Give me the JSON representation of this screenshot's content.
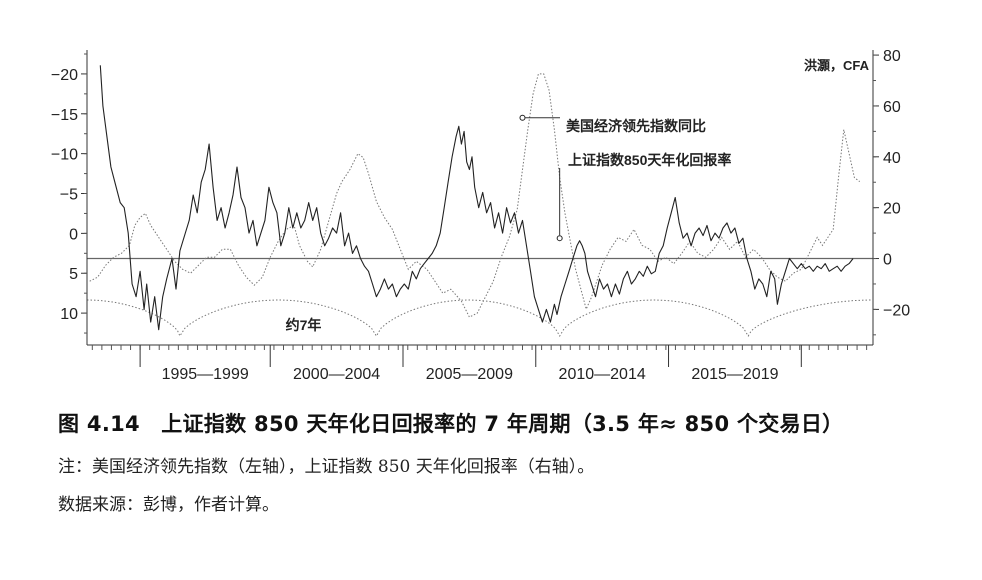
{
  "chart_data": {
    "type": "line",
    "credit": "洪灝，CFA",
    "left_axis": {
      "reversed": true,
      "ticks": [
        -20,
        -15,
        -10,
        -5,
        0,
        5,
        10
      ],
      "range": [
        -23,
        14
      ]
    },
    "right_axis": {
      "ticks": [
        80,
        60,
        40,
        20,
        0,
        -20
      ],
      "range": [
        -34,
        82
      ]
    },
    "x_range": [
      1992.6,
      2022.2
    ],
    "period_labels": [
      "1995—1999",
      "2000—2004",
      "2005—2009",
      "2010—2014",
      "2015—2019"
    ],
    "cycle_label": "约7年",
    "cycle_peaks": [
      1996.1,
      2003.5,
      2010.4,
      2017.5
    ],
    "annotations": [
      {
        "text": "美国经济领先指数同比",
        "series": "美国经济领先指数同比",
        "x": 2009.0,
        "y": -14.5
      },
      {
        "text": "上证指数850天年化回报率",
        "series": "上证指数850天年化回报率",
        "x": 2010.4,
        "y": 8
      }
    ],
    "zero_line": {
      "axis": "right",
      "value": 0
    },
    "series": [
      {
        "name": "美国经济领先指数同比",
        "axis": "left",
        "style": "dotted",
        "points": [
          [
            1992.7,
            6.0
          ],
          [
            1993.0,
            5.5
          ],
          [
            1993.3,
            4.0
          ],
          [
            1993.6,
            3.0
          ],
          [
            1993.9,
            2.5
          ],
          [
            1994.2,
            1.5
          ],
          [
            1994.4,
            -1.0
          ],
          [
            1994.6,
            -2.0
          ],
          [
            1994.8,
            -2.5
          ],
          [
            1995.0,
            -1.0
          ],
          [
            1995.3,
            0.5
          ],
          [
            1995.6,
            2.0
          ],
          [
            1995.9,
            3.5
          ],
          [
            1996.2,
            4.5
          ],
          [
            1996.5,
            5.0
          ],
          [
            1996.8,
            4.0
          ],
          [
            1997.1,
            3.0
          ],
          [
            1997.4,
            3.0
          ],
          [
            1997.7,
            2.0
          ],
          [
            1998.0,
            2.0
          ],
          [
            1998.3,
            4.0
          ],
          [
            1998.6,
            5.5
          ],
          [
            1998.9,
            6.5
          ],
          [
            1999.2,
            5.5
          ],
          [
            1999.5,
            3.0
          ],
          [
            1999.8,
            1.0
          ],
          [
            2000.1,
            -0.5
          ],
          [
            2000.4,
            -1.0
          ],
          [
            2000.6,
            1.5
          ],
          [
            2000.9,
            3.5
          ],
          [
            2001.1,
            4.2
          ],
          [
            2001.4,
            2.0
          ],
          [
            2001.7,
            -1.5
          ],
          [
            2002.0,
            -5.0
          ],
          [
            2002.2,
            -6.5
          ],
          [
            2002.5,
            -8.0
          ],
          [
            2002.8,
            -10.0
          ],
          [
            2003.0,
            -9.5
          ],
          [
            2003.2,
            -7.5
          ],
          [
            2003.5,
            -4.0
          ],
          [
            2003.8,
            -2.0
          ],
          [
            2004.1,
            -0.5
          ],
          [
            2004.4,
            2.0
          ],
          [
            2004.7,
            4.5
          ],
          [
            2005.0,
            3.5
          ],
          [
            2005.4,
            4.5
          ],
          [
            2005.7,
            6.0
          ],
          [
            2006.0,
            7.5
          ],
          [
            2006.3,
            7.0
          ],
          [
            2006.7,
            8.5
          ],
          [
            2007.0,
            10.5
          ],
          [
            2007.3,
            10.0
          ],
          [
            2007.6,
            8.0
          ],
          [
            2007.9,
            6.0
          ],
          [
            2008.2,
            3.0
          ],
          [
            2008.5,
            0.5
          ],
          [
            2008.8,
            -3.0
          ],
          [
            2009.0,
            -8.0
          ],
          [
            2009.2,
            -13.0
          ],
          [
            2009.4,
            -17.5
          ],
          [
            2009.6,
            -20.0
          ],
          [
            2009.8,
            -20.0
          ],
          [
            2010.0,
            -18.0
          ],
          [
            2010.2,
            -13.0
          ],
          [
            2010.4,
            -7.0
          ],
          [
            2010.6,
            -2.5
          ],
          [
            2010.8,
            1.0
          ],
          [
            2011.0,
            4.5
          ],
          [
            2011.2,
            7.0
          ],
          [
            2011.4,
            9.5
          ],
          [
            2011.6,
            8.0
          ],
          [
            2011.8,
            6.0
          ],
          [
            2012.0,
            4.0
          ],
          [
            2012.3,
            2.0
          ],
          [
            2012.6,
            0.5
          ],
          [
            2012.9,
            1.0
          ],
          [
            2013.2,
            -0.5
          ],
          [
            2013.5,
            1.5
          ],
          [
            2013.8,
            2.0
          ],
          [
            2014.1,
            3.5
          ],
          [
            2014.4,
            3.0
          ],
          [
            2014.7,
            3.8
          ],
          [
            2015.0,
            2.5
          ],
          [
            2015.3,
            1.0
          ],
          [
            2015.6,
            2.5
          ],
          [
            2015.9,
            3.0
          ],
          [
            2016.2,
            2.0
          ],
          [
            2016.5,
            0.5
          ],
          [
            2016.8,
            2.0
          ],
          [
            2017.1,
            1.0
          ],
          [
            2017.4,
            3.0
          ],
          [
            2017.7,
            2.0
          ],
          [
            2018.0,
            3.0
          ],
          [
            2018.3,
            4.5
          ],
          [
            2018.6,
            5.5
          ],
          [
            2018.9,
            6.0
          ],
          [
            2019.2,
            5.0
          ],
          [
            2019.5,
            4.5
          ],
          [
            2019.8,
            2.5
          ],
          [
            2020.1,
            0.5
          ],
          [
            2020.3,
            1.5
          ],
          [
            2020.5,
            0.5
          ],
          [
            2020.7,
            -0.5
          ],
          [
            2020.9,
            -7.0
          ],
          [
            2021.1,
            -13.0
          ],
          [
            2021.3,
            -10.0
          ],
          [
            2021.5,
            -7.0
          ],
          [
            2021.7,
            -6.5
          ]
        ]
      },
      {
        "name": "上证指数850天年化回报率",
        "axis": "right",
        "style": "solid",
        "points": [
          [
            1993.1,
            76
          ],
          [
            1993.2,
            60
          ],
          [
            1993.35,
            48
          ],
          [
            1993.5,
            36
          ],
          [
            1993.7,
            28
          ],
          [
            1993.85,
            22
          ],
          [
            1994.0,
            20
          ],
          [
            1994.15,
            10
          ],
          [
            1994.3,
            -10
          ],
          [
            1994.45,
            -15
          ],
          [
            1994.6,
            -5
          ],
          [
            1994.75,
            -20
          ],
          [
            1994.85,
            -10
          ],
          [
            1995.0,
            -25
          ],
          [
            1995.15,
            -15
          ],
          [
            1995.3,
            -28
          ],
          [
            1995.45,
            -15
          ],
          [
            1995.6,
            -8
          ],
          [
            1995.8,
            0
          ],
          [
            1995.95,
            -12
          ],
          [
            1996.1,
            3
          ],
          [
            1996.3,
            10
          ],
          [
            1996.45,
            15
          ],
          [
            1996.6,
            25
          ],
          [
            1996.75,
            18
          ],
          [
            1996.9,
            30
          ],
          [
            1997.05,
            35
          ],
          [
            1997.2,
            45
          ],
          [
            1997.35,
            28
          ],
          [
            1997.5,
            15
          ],
          [
            1997.65,
            20
          ],
          [
            1997.8,
            12
          ],
          [
            1997.95,
            18
          ],
          [
            1998.1,
            25
          ],
          [
            1998.25,
            36
          ],
          [
            1998.4,
            24
          ],
          [
            1998.55,
            20
          ],
          [
            1998.7,
            10
          ],
          [
            1998.85,
            15
          ],
          [
            1999.0,
            5
          ],
          [
            1999.15,
            10
          ],
          [
            1999.3,
            15
          ],
          [
            1999.45,
            28
          ],
          [
            1999.6,
            22
          ],
          [
            1999.75,
            18
          ],
          [
            1999.9,
            5
          ],
          [
            2000.05,
            10
          ],
          [
            2000.2,
            20
          ],
          [
            2000.35,
            12
          ],
          [
            2000.5,
            18
          ],
          [
            2000.65,
            12
          ],
          [
            2000.8,
            15
          ],
          [
            2000.95,
            22
          ],
          [
            2001.1,
            15
          ],
          [
            2001.25,
            20
          ],
          [
            2001.4,
            10
          ],
          [
            2001.55,
            5
          ],
          [
            2001.7,
            8
          ],
          [
            2001.85,
            12
          ],
          [
            2002.0,
            10
          ],
          [
            2002.15,
            18
          ],
          [
            2002.3,
            5
          ],
          [
            2002.45,
            10
          ],
          [
            2002.6,
            2
          ],
          [
            2002.75,
            5
          ],
          [
            2002.9,
            0
          ],
          [
            2003.05,
            -3
          ],
          [
            2003.2,
            -5
          ],
          [
            2003.35,
            -10
          ],
          [
            2003.5,
            -15
          ],
          [
            2003.65,
            -12
          ],
          [
            2003.8,
            -8
          ],
          [
            2003.95,
            -12
          ],
          [
            2004.1,
            -10
          ],
          [
            2004.25,
            -15
          ],
          [
            2004.4,
            -12
          ],
          [
            2004.55,
            -10
          ],
          [
            2004.7,
            -12
          ],
          [
            2004.85,
            -5
          ],
          [
            2005.0,
            -8
          ],
          [
            2005.15,
            -4
          ],
          [
            2005.3,
            -2
          ],
          [
            2005.45,
            0
          ],
          [
            2005.6,
            2
          ],
          [
            2005.75,
            5
          ],
          [
            2005.9,
            10
          ],
          [
            2006.05,
            20
          ],
          [
            2006.2,
            30
          ],
          [
            2006.35,
            40
          ],
          [
            2006.5,
            48
          ],
          [
            2006.6,
            52
          ],
          [
            2006.7,
            45
          ],
          [
            2006.8,
            50
          ],
          [
            2006.9,
            38
          ],
          [
            2007.0,
            35
          ],
          [
            2007.1,
            40
          ],
          [
            2007.2,
            28
          ],
          [
            2007.35,
            20
          ],
          [
            2007.5,
            26
          ],
          [
            2007.65,
            18
          ],
          [
            2007.8,
            22
          ],
          [
            2007.95,
            12
          ],
          [
            2008.1,
            18
          ],
          [
            2008.25,
            10
          ],
          [
            2008.4,
            20
          ],
          [
            2008.55,
            14
          ],
          [
            2008.7,
            18
          ],
          [
            2008.85,
            10
          ],
          [
            2009.0,
            15
          ],
          [
            2009.15,
            5
          ],
          [
            2009.3,
            -5
          ],
          [
            2009.45,
            -15
          ],
          [
            2009.6,
            -20
          ],
          [
            2009.75,
            -25
          ],
          [
            2009.9,
            -20
          ],
          [
            2010.05,
            -25
          ],
          [
            2010.2,
            -18
          ],
          [
            2010.3,
            -22
          ],
          [
            2010.45,
            -15
          ],
          [
            2010.6,
            -10
          ],
          [
            2010.75,
            -5
          ],
          [
            2010.9,
            0
          ],
          [
            2011.05,
            5
          ],
          [
            2011.15,
            7
          ],
          [
            2011.25,
            5
          ],
          [
            2011.35,
            2
          ],
          [
            2011.45,
            -5
          ],
          [
            2011.6,
            -10
          ],
          [
            2011.75,
            -15
          ],
          [
            2011.9,
            -8
          ],
          [
            2012.05,
            -12
          ],
          [
            2012.2,
            -10
          ],
          [
            2012.35,
            -15
          ],
          [
            2012.5,
            -10
          ],
          [
            2012.65,
            -14
          ],
          [
            2012.8,
            -8
          ],
          [
            2012.95,
            -5
          ],
          [
            2013.1,
            -10
          ],
          [
            2013.25,
            -8
          ],
          [
            2013.4,
            -5
          ],
          [
            2013.55,
            -7
          ],
          [
            2013.7,
            -3
          ],
          [
            2013.85,
            -6
          ],
          [
            2014.0,
            -5
          ],
          [
            2014.15,
            2
          ],
          [
            2014.3,
            5
          ],
          [
            2014.45,
            12
          ],
          [
            2014.6,
            18
          ],
          [
            2014.75,
            24
          ],
          [
            2014.9,
            14
          ],
          [
            2015.05,
            8
          ],
          [
            2015.2,
            10
          ],
          [
            2015.35,
            5
          ],
          [
            2015.5,
            10
          ],
          [
            2015.65,
            12
          ],
          [
            2015.8,
            9
          ],
          [
            2015.95,
            13
          ],
          [
            2016.1,
            7
          ],
          [
            2016.25,
            10
          ],
          [
            2016.4,
            8
          ],
          [
            2016.55,
            12
          ],
          [
            2016.7,
            14
          ],
          [
            2016.85,
            10
          ],
          [
            2017.0,
            12
          ],
          [
            2017.15,
            6
          ],
          [
            2017.3,
            8
          ],
          [
            2017.45,
            0
          ],
          [
            2017.6,
            -5
          ],
          [
            2017.75,
            -12
          ],
          [
            2017.9,
            -8
          ],
          [
            2018.05,
            -10
          ],
          [
            2018.2,
            -15
          ],
          [
            2018.35,
            -5
          ],
          [
            2018.5,
            -8
          ],
          [
            2018.6,
            -18
          ],
          [
            2018.75,
            -10
          ],
          [
            2018.9,
            -5
          ],
          [
            2019.05,
            0
          ],
          [
            2019.2,
            -2
          ],
          [
            2019.35,
            -4
          ],
          [
            2019.5,
            -2
          ],
          [
            2019.65,
            -4
          ],
          [
            2019.8,
            -3
          ],
          [
            2019.95,
            -5
          ],
          [
            2020.1,
            -3
          ],
          [
            2020.25,
            -4
          ],
          [
            2020.4,
            -2
          ],
          [
            2020.55,
            -5
          ],
          [
            2020.7,
            -4
          ],
          [
            2020.85,
            -3
          ],
          [
            2021.0,
            -5
          ],
          [
            2021.15,
            -3
          ],
          [
            2021.3,
            -2
          ],
          [
            2021.45,
            0
          ]
        ]
      }
    ]
  },
  "caption": "图 4.14　上证指数 850 天年化日回报率的 7 年周期（3.5 年≈ 850 个交易日）",
  "note": "注：美国经济领先指数（左轴），上证指数 850 天年化回报率（右轴）。",
  "source": "数据来源：彭博，作者计算。"
}
